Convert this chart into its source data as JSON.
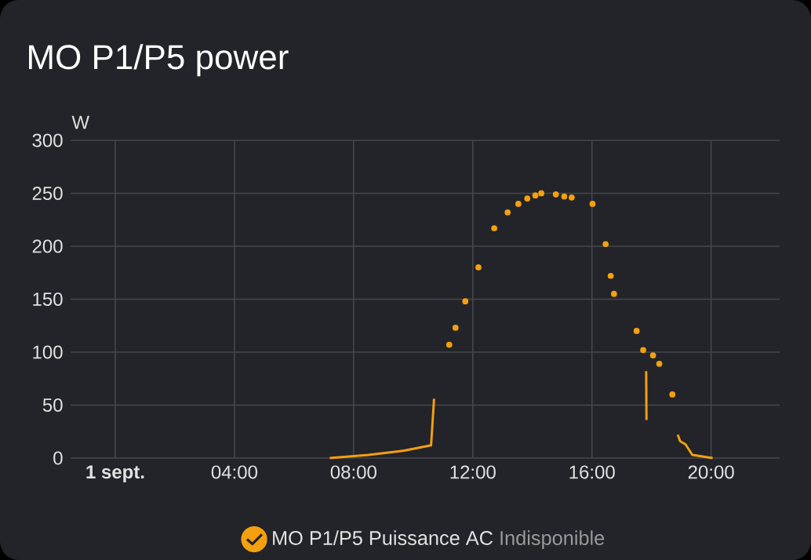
{
  "chart_data": {
    "type": "line",
    "title": "MO P1/P5 power",
    "ylabel": "W",
    "xlim": [
      -1.5,
      22.3
    ],
    "ylim": [
      0,
      300
    ],
    "xticks": [
      {
        "value": 0,
        "label": "**1 sept.**"
      },
      {
        "value": 4,
        "label": "04:00"
      },
      {
        "value": 8,
        "label": "08:00"
      },
      {
        "value": 12,
        "label": "12:00"
      },
      {
        "value": 16,
        "label": "16:00"
      },
      {
        "value": 20,
        "label": "20:00"
      }
    ],
    "yticks": [
      0,
      50,
      100,
      150,
      200,
      250,
      300
    ],
    "grid": true,
    "legend": "bottom",
    "marker": "none",
    "line_style": "solid",
    "annotations": [
      "Indisponible"
    ],
    "series": [
      {
        "name": "MO P1/P5 Puissance AC",
        "color": "#f5a00f",
        "x": [
          7.2,
          8.5,
          9.7,
          10.6,
          10.7,
          11.0,
          17.82,
          17.83,
          18.3,
          18.88,
          18.96,
          19.14,
          19.37,
          20.05
        ],
        "values": [
          0,
          3,
          7,
          12,
          56,
          null,
          82,
          36,
          null,
          22,
          16,
          13,
          3,
          0
        ]
      },
      {
        "type": "scatter",
        "color": "#f5a00f",
        "x": [
          11.21,
          11.42,
          11.75,
          12.19,
          12.72,
          13.17,
          13.53,
          13.83,
          14.1,
          14.3,
          14.79,
          15.07,
          15.32,
          16.02,
          16.46,
          16.63,
          16.74,
          17.5,
          17.72,
          18.05,
          18.26,
          18.7
        ],
        "values": [
          107,
          123,
          148,
          180,
          217,
          232,
          240,
          245,
          248,
          250,
          249,
          247,
          246,
          240,
          202,
          172,
          155,
          120,
          102,
          97,
          89,
          60
        ]
      }
    ]
  }
}
